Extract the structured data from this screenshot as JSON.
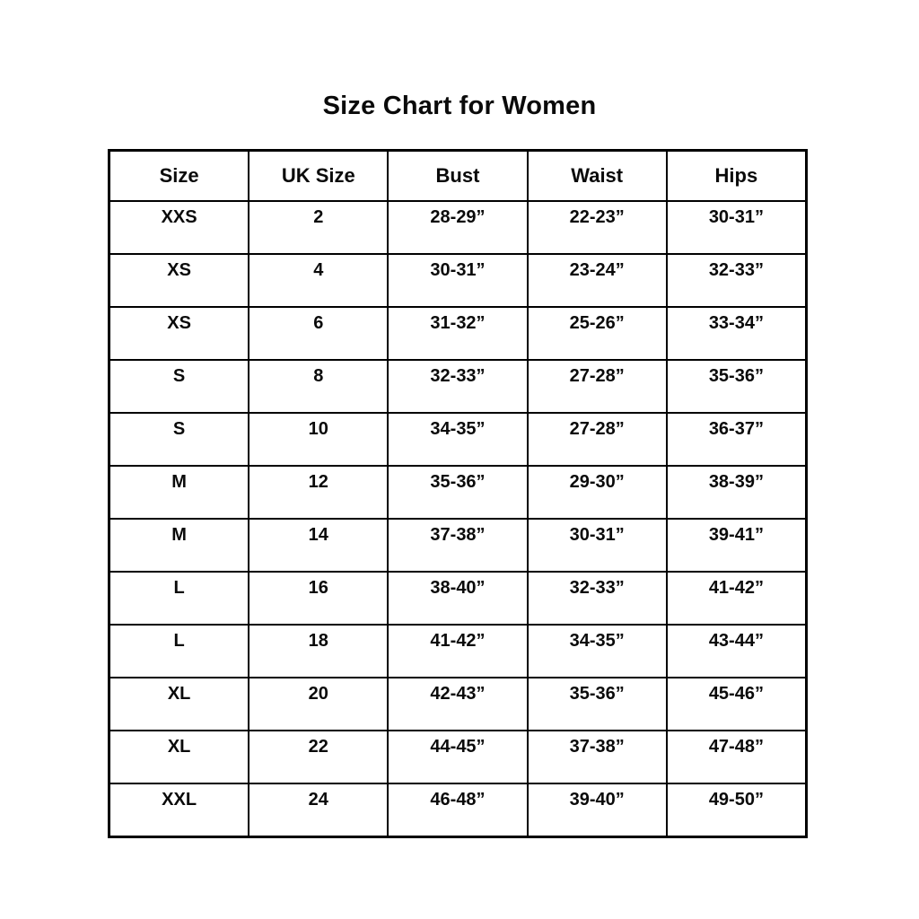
{
  "page": {
    "title": "Size Chart for Women"
  },
  "table": {
    "columns": [
      "Size",
      "UK Size",
      "Bust",
      "Waist",
      "Hips"
    ],
    "rows": [
      [
        "XXS",
        "2",
        "28-29”",
        "22-23”",
        "30-31”"
      ],
      [
        "XS",
        "4",
        "30-31”",
        "23-24”",
        "32-33”"
      ],
      [
        "XS",
        "6",
        "31-32”",
        "25-26”",
        "33-34”"
      ],
      [
        "S",
        "8",
        "32-33”",
        "27-28”",
        "35-36”"
      ],
      [
        "S",
        "10",
        "34-35”",
        "27-28”",
        "36-37”"
      ],
      [
        "M",
        "12",
        "35-36”",
        "29-30”",
        "38-39”"
      ],
      [
        "M",
        "14",
        "37-38”",
        "30-31”",
        "39-41”"
      ],
      [
        "L",
        "16",
        "38-40”",
        "32-33”",
        "41-42”"
      ],
      [
        "L",
        "18",
        "41-42”",
        "34-35”",
        "43-44”"
      ],
      [
        "XL",
        "20",
        "42-43”",
        "35-36”",
        "45-46”"
      ],
      [
        "XL",
        "22",
        "44-45”",
        "37-38”",
        "47-48”"
      ],
      [
        "XXL",
        "24",
        "46-48”",
        "39-40”",
        "49-50”"
      ]
    ]
  },
  "chart_data": {
    "type": "table",
    "title": "Size Chart for Women",
    "columns": [
      "Size",
      "UK Size",
      "Bust",
      "Waist",
      "Hips"
    ],
    "rows": [
      {
        "size": "XXS",
        "uk_size": 2,
        "bust": "28-29”",
        "waist": "22-23”",
        "hips": "30-31”"
      },
      {
        "size": "XS",
        "uk_size": 4,
        "bust": "30-31”",
        "waist": "23-24”",
        "hips": "32-33”"
      },
      {
        "size": "XS",
        "uk_size": 6,
        "bust": "31-32”",
        "waist": "25-26”",
        "hips": "33-34”"
      },
      {
        "size": "S",
        "uk_size": 8,
        "bust": "32-33”",
        "waist": "27-28”",
        "hips": "35-36”"
      },
      {
        "size": "S",
        "uk_size": 10,
        "bust": "34-35”",
        "waist": "27-28”",
        "hips": "36-37”"
      },
      {
        "size": "M",
        "uk_size": 12,
        "bust": "35-36”",
        "waist": "29-30”",
        "hips": "38-39”"
      },
      {
        "size": "M",
        "uk_size": 14,
        "bust": "37-38”",
        "waist": "30-31”",
        "hips": "39-41”"
      },
      {
        "size": "L",
        "uk_size": 16,
        "bust": "38-40”",
        "waist": "32-33”",
        "hips": "41-42”"
      },
      {
        "size": "L",
        "uk_size": 18,
        "bust": "41-42”",
        "waist": "34-35”",
        "hips": "43-44”"
      },
      {
        "size": "XL",
        "uk_size": 20,
        "bust": "42-43”",
        "waist": "35-36”",
        "hips": "45-46”"
      },
      {
        "size": "XL",
        "uk_size": 22,
        "bust": "44-45”",
        "waist": "37-38”",
        "hips": "47-48”"
      },
      {
        "size": "XXL",
        "uk_size": 24,
        "bust": "46-48”",
        "waist": "39-40”",
        "hips": "49-50”"
      }
    ]
  }
}
